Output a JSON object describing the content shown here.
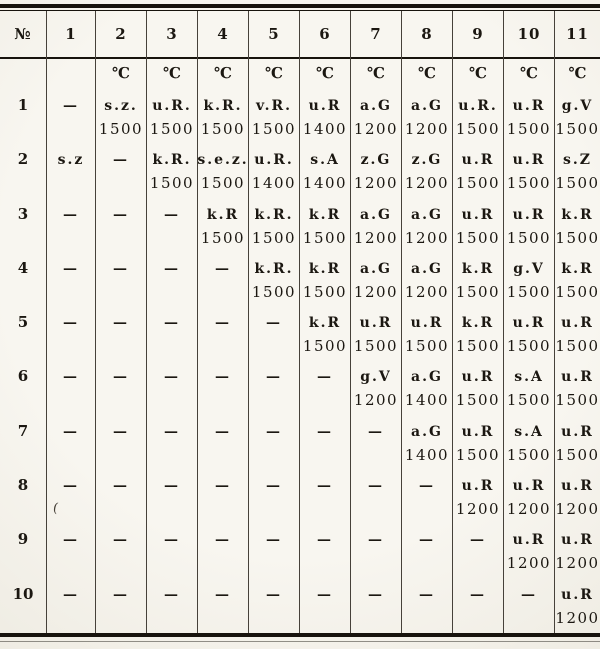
{
  "page": {
    "colors": {
      "paper": "#f8f6f0",
      "paper_edge": "#efece3",
      "ink": "#1b1711",
      "rule": "#17130d",
      "grid_line": "#46413a"
    }
  },
  "table": {
    "corner_label": "№",
    "column_headers": [
      "1",
      "2",
      "3",
      "4",
      "5",
      "6",
      "7",
      "8",
      "9",
      "10",
      "11"
    ],
    "unit_symbol": "℃",
    "unit_row": [
      "",
      "",
      "℃",
      "℃",
      "℃",
      "℃",
      "℃",
      "℃",
      "℃",
      "℃",
      "℃",
      "℃"
    ],
    "empty_marker": "—",
    "rows": [
      {
        "no": "1",
        "cells": [
          {
            "abbr": "—",
            "temp": ""
          },
          {
            "abbr": "s.z.",
            "temp": "1500"
          },
          {
            "abbr": "u.R.",
            "temp": "1500"
          },
          {
            "abbr": "k.R.",
            "temp": "1500"
          },
          {
            "abbr": "v.R.",
            "temp": "1500"
          },
          {
            "abbr": "u.R",
            "temp": "1400"
          },
          {
            "abbr": "a.G",
            "temp": "1200"
          },
          {
            "abbr": "a.G",
            "temp": "1200"
          },
          {
            "abbr": "u.R.",
            "temp": "1500"
          },
          {
            "abbr": "u.R",
            "temp": "1500"
          },
          {
            "abbr": "g.V",
            "temp": "1500"
          }
        ]
      },
      {
        "no": "2",
        "cells": [
          {
            "abbr": "s.z",
            "temp": ""
          },
          {
            "abbr": "—",
            "temp": ""
          },
          {
            "abbr": "k.R.",
            "temp": "1500"
          },
          {
            "abbr": "s.e.z.",
            "temp": "1500"
          },
          {
            "abbr": "u.R.",
            "temp": "1400"
          },
          {
            "abbr": "s.A",
            "temp": "1400"
          },
          {
            "abbr": "z.G",
            "temp": "1200"
          },
          {
            "abbr": "z.G",
            "temp": "1200"
          },
          {
            "abbr": "u.R",
            "temp": "1500"
          },
          {
            "abbr": "u.R",
            "temp": "1500"
          },
          {
            "abbr": "s.Z",
            "temp": "1500"
          }
        ]
      },
      {
        "no": "3",
        "cells": [
          {
            "abbr": "—",
            "temp": ""
          },
          {
            "abbr": "—",
            "temp": ""
          },
          {
            "abbr": "—",
            "temp": ""
          },
          {
            "abbr": "k.R",
            "temp": "1500"
          },
          {
            "abbr": "k.R.",
            "temp": "1500"
          },
          {
            "abbr": "k.R",
            "temp": "1500"
          },
          {
            "abbr": "a.G",
            "temp": "1200"
          },
          {
            "abbr": "a.G",
            "temp": "1200"
          },
          {
            "abbr": "u.R",
            "temp": "1500"
          },
          {
            "abbr": "u.R",
            "temp": "1500"
          },
          {
            "abbr": "k.R",
            "temp": "1500"
          }
        ]
      },
      {
        "no": "4",
        "cells": [
          {
            "abbr": "—",
            "temp": ""
          },
          {
            "abbr": "—",
            "temp": ""
          },
          {
            "abbr": "—",
            "temp": ""
          },
          {
            "abbr": "—",
            "temp": ""
          },
          {
            "abbr": "k.R.",
            "temp": "1500"
          },
          {
            "abbr": "k.R",
            "temp": "1500"
          },
          {
            "abbr": "a.G",
            "temp": "1200"
          },
          {
            "abbr": "a.G",
            "temp": "1200"
          },
          {
            "abbr": "k.R",
            "temp": "1500"
          },
          {
            "abbr": "g.V",
            "temp": "1500"
          },
          {
            "abbr": "k.R",
            "temp": "1500"
          }
        ]
      },
      {
        "no": "5",
        "cells": [
          {
            "abbr": "—",
            "temp": ""
          },
          {
            "abbr": "—",
            "temp": ""
          },
          {
            "abbr": "—",
            "temp": ""
          },
          {
            "abbr": "—",
            "temp": ""
          },
          {
            "abbr": "—",
            "temp": ""
          },
          {
            "abbr": "k.R",
            "temp": "1500"
          },
          {
            "abbr": "u.R",
            "temp": "1500"
          },
          {
            "abbr": "u.R",
            "temp": "1500"
          },
          {
            "abbr": "k.R",
            "temp": "1500"
          },
          {
            "abbr": "u.R",
            "temp": "1500"
          },
          {
            "abbr": "u.R",
            "temp": "1500"
          }
        ]
      },
      {
        "no": "6",
        "cells": [
          {
            "abbr": "—",
            "temp": ""
          },
          {
            "abbr": "—",
            "temp": ""
          },
          {
            "abbr": "—",
            "temp": ""
          },
          {
            "abbr": "—",
            "temp": ""
          },
          {
            "abbr": "—",
            "temp": ""
          },
          {
            "abbr": "—",
            "temp": ""
          },
          {
            "abbr": "g.V",
            "temp": "1200"
          },
          {
            "abbr": "a.G",
            "temp": "1400"
          },
          {
            "abbr": "u.R",
            "temp": "1500"
          },
          {
            "abbr": "s.A",
            "temp": "1500"
          },
          {
            "abbr": "u.R",
            "temp": "1500"
          }
        ]
      },
      {
        "no": "7",
        "cells": [
          {
            "abbr": "—",
            "temp": ""
          },
          {
            "abbr": "—",
            "temp": ""
          },
          {
            "abbr": "—",
            "temp": ""
          },
          {
            "abbr": "—",
            "temp": ""
          },
          {
            "abbr": "—",
            "temp": ""
          },
          {
            "abbr": "—",
            "temp": ""
          },
          {
            "abbr": "—",
            "temp": ""
          },
          {
            "abbr": "a.G",
            "temp": "1400"
          },
          {
            "abbr": "u.R",
            "temp": "1500"
          },
          {
            "abbr": "s.A",
            "temp": "1500"
          },
          {
            "abbr": "u.R",
            "temp": "1500"
          }
        ]
      },
      {
        "no": "8",
        "cells": [
          {
            "abbr": "—",
            "temp": ""
          },
          {
            "abbr": "—",
            "temp": ""
          },
          {
            "abbr": "—",
            "temp": ""
          },
          {
            "abbr": "—",
            "temp": ""
          },
          {
            "abbr": "—",
            "temp": ""
          },
          {
            "abbr": "—",
            "temp": ""
          },
          {
            "abbr": "—",
            "temp": ""
          },
          {
            "abbr": "—",
            "temp": ""
          },
          {
            "abbr": "u.R",
            "temp": "1200"
          },
          {
            "abbr": "u.R",
            "temp": "1200"
          },
          {
            "abbr": "u.R",
            "temp": "1200"
          }
        ]
      },
      {
        "no": "9",
        "cells": [
          {
            "abbr": "—",
            "temp": ""
          },
          {
            "abbr": "—",
            "temp": ""
          },
          {
            "abbr": "—",
            "temp": ""
          },
          {
            "abbr": "—",
            "temp": ""
          },
          {
            "abbr": "—",
            "temp": ""
          },
          {
            "abbr": "—",
            "temp": ""
          },
          {
            "abbr": "—",
            "temp": ""
          },
          {
            "abbr": "—",
            "temp": ""
          },
          {
            "abbr": "—",
            "temp": ""
          },
          {
            "abbr": "u.R",
            "temp": "1200"
          },
          {
            "abbr": "u.R",
            "temp": "1200"
          }
        ]
      },
      {
        "no": "10",
        "cells": [
          {
            "abbr": "—",
            "temp": ""
          },
          {
            "abbr": "—",
            "temp": ""
          },
          {
            "abbr": "—",
            "temp": ""
          },
          {
            "abbr": "—",
            "temp": ""
          },
          {
            "abbr": "—",
            "temp": ""
          },
          {
            "abbr": "—",
            "temp": ""
          },
          {
            "abbr": "—",
            "temp": ""
          },
          {
            "abbr": "—",
            "temp": ""
          },
          {
            "abbr": "—",
            "temp": ""
          },
          {
            "abbr": "—",
            "temp": ""
          },
          {
            "abbr": "u.R",
            "temp": "1200"
          }
        ]
      }
    ]
  },
  "artifact_mark": "("
}
